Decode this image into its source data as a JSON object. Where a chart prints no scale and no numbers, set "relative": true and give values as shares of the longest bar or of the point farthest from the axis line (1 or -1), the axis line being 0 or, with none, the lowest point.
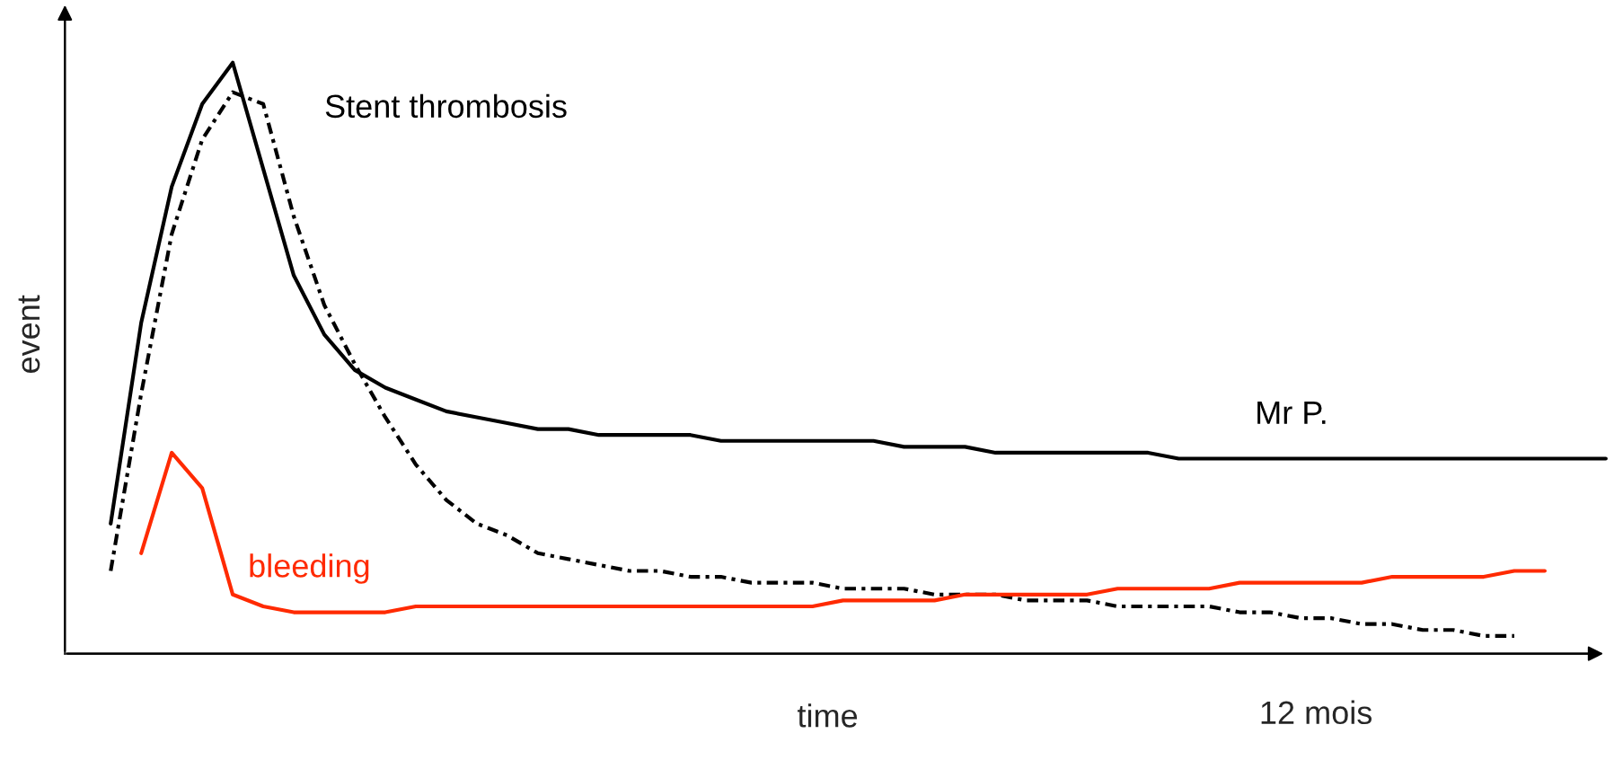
{
  "chart_data": {
    "type": "line",
    "relative": true,
    "xlabel": "time",
    "ylabel": "event",
    "annotations": [
      "12 mois"
    ],
    "legend": false,
    "tick_labels": false,
    "categories": [
      null,
      null,
      null,
      null,
      null,
      null,
      null,
      null,
      null,
      null,
      null,
      null,
      null,
      null,
      null,
      null,
      null,
      null,
      null,
      null,
      null,
      null,
      null,
      null,
      null,
      null,
      null,
      null,
      null,
      null,
      null,
      null,
      null,
      null,
      null,
      null,
      null,
      null,
      null,
      null,
      null,
      null,
      null,
      null,
      null,
      null,
      null,
      null,
      null,
      null,
      null
    ],
    "series": [
      {
        "name": "Mr P.",
        "color": "#000000",
        "line_style": "solid",
        "values": [
          null,
          0.22,
          0.56,
          0.79,
          0.93,
          1.0,
          0.82,
          0.64,
          0.54,
          0.48,
          0.45,
          0.43,
          0.41,
          0.4,
          0.39,
          0.38,
          0.38,
          0.37,
          0.37,
          0.37,
          0.37,
          0.36,
          0.36,
          0.36,
          0.36,
          0.36,
          0.36,
          0.35,
          0.35,
          0.35,
          0.34,
          0.34,
          0.34,
          0.34,
          0.34,
          0.34,
          0.33,
          0.33,
          0.33,
          0.33,
          0.33,
          0.33,
          0.33,
          0.33,
          0.33,
          0.33,
          0.33,
          0.33,
          0.33,
          0.33,
          0.33
        ]
      },
      {
        "name": "Stent thrombosis",
        "color": "#000000",
        "line_style": "dashdot",
        "values": [
          null,
          0.14,
          0.44,
          0.71,
          0.87,
          0.95,
          0.93,
          0.74,
          0.59,
          0.49,
          0.4,
          0.32,
          0.26,
          0.22,
          0.2,
          0.17,
          0.16,
          0.15,
          0.14,
          0.14,
          0.13,
          0.13,
          0.12,
          0.12,
          0.12,
          0.11,
          0.11,
          0.11,
          0.1,
          0.1,
          0.1,
          0.09,
          0.09,
          0.09,
          0.08,
          0.08,
          0.08,
          0.08,
          0.07,
          0.07,
          0.06,
          0.06,
          0.05,
          0.05,
          0.04,
          0.04,
          0.03,
          0.03,
          null,
          null,
          null
        ]
      },
      {
        "name": "bleeding",
        "color": "#ff2a00",
        "line_style": "solid",
        "values": [
          null,
          null,
          0.17,
          0.34,
          0.28,
          0.1,
          0.08,
          0.07,
          0.07,
          0.07,
          0.07,
          0.08,
          0.08,
          0.08,
          0.08,
          0.08,
          0.08,
          0.08,
          0.08,
          0.08,
          0.08,
          0.08,
          0.08,
          0.08,
          0.08,
          0.09,
          0.09,
          0.09,
          0.09,
          0.1,
          0.1,
          0.1,
          0.1,
          0.1,
          0.11,
          0.11,
          0.11,
          0.11,
          0.12,
          0.12,
          0.12,
          0.12,
          0.12,
          0.13,
          0.13,
          0.13,
          0.13,
          0.14,
          0.14,
          null,
          null
        ]
      }
    ]
  }
}
